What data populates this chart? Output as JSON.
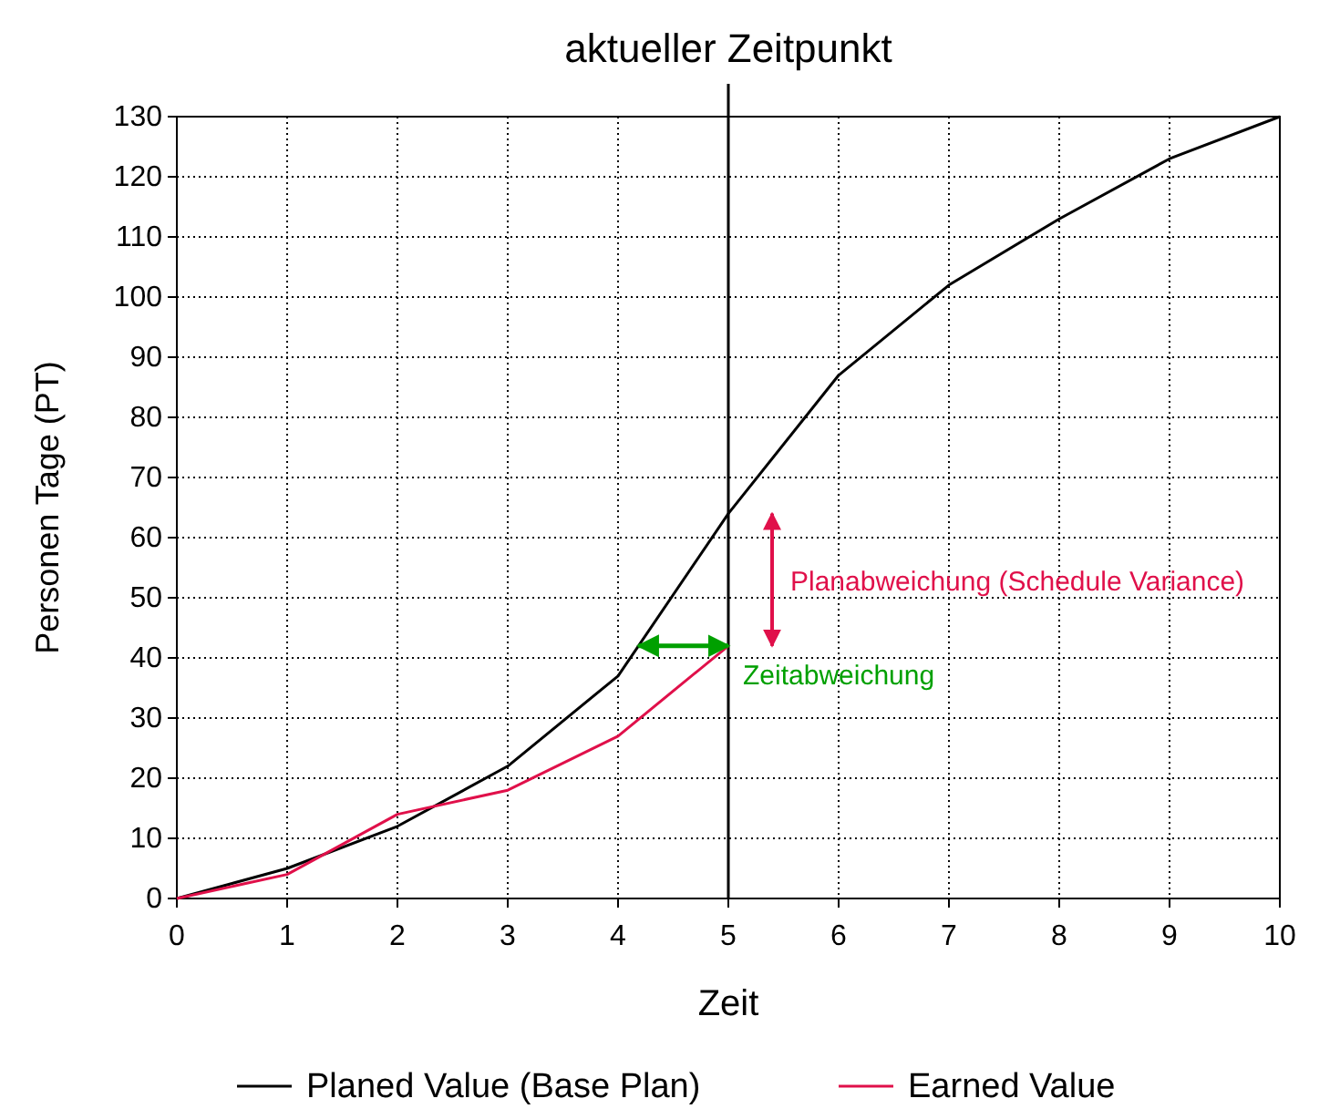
{
  "chart_data": {
    "type": "line",
    "xlabel": "Zeit",
    "ylabel": "Personen Tage (PT)",
    "x": [
      0,
      1,
      2,
      3,
      4,
      5,
      6,
      7,
      8,
      9,
      10
    ],
    "series": [
      {
        "name": "Planed Value (Base Plan)",
        "color": "#000000",
        "values": [
          0,
          5,
          12,
          22,
          37,
          64,
          87,
          102,
          113,
          123,
          130
        ]
      },
      {
        "name": "Earned Value",
        "color": "#e0104a",
        "values": [
          0,
          4,
          14,
          18,
          27,
          42,
          null,
          null,
          null,
          null,
          null
        ]
      }
    ],
    "xlim": [
      0,
      10
    ],
    "xticks": [
      0,
      1,
      2,
      3,
      4,
      5,
      6,
      7,
      8,
      9,
      10
    ],
    "ylim": [
      0,
      130
    ],
    "yticks": [
      0,
      10,
      20,
      30,
      40,
      50,
      60,
      70,
      80,
      90,
      100,
      110,
      120,
      130
    ],
    "grid": true,
    "legend": "bottom",
    "marker": "none",
    "line_style": "solid",
    "ref_lines": [
      {
        "axis": "x",
        "value": 5,
        "label": "aktueller Zeitpunkt",
        "color": "#000000"
      }
    ],
    "annotations": [
      "Planabweichung (Schedule Variance)",
      {
        "text": "Zeitabweichung",
        "x": 5,
        "y": 38
      }
    ]
  }
}
